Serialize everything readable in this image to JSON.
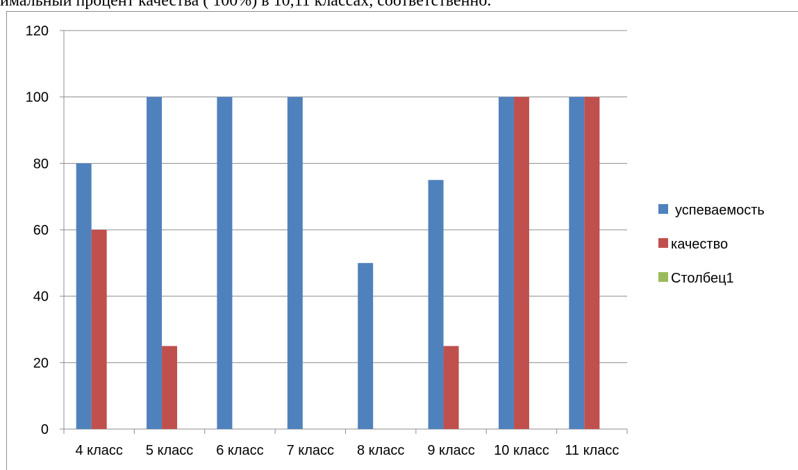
{
  "page": {
    "top_text": "имальный процент качества ( 100%) в 10,11 классах, соответственно."
  },
  "chart_data": {
    "type": "bar",
    "title": "",
    "xlabel": "",
    "ylabel": "",
    "ylim": [
      0,
      120
    ],
    "yticks": [
      0,
      20,
      40,
      60,
      80,
      100,
      120
    ],
    "categories": [
      "4 класс",
      "5 класс",
      "6 класс",
      "7 класс",
      "8 класс",
      "9 класс",
      "10 класс",
      "11 класс"
    ],
    "series": [
      {
        "name": "успеваемость",
        "color": "#4f81bd",
        "values": [
          80,
          100,
          100,
          100,
          50,
          75,
          100,
          100
        ]
      },
      {
        "name": "качество",
        "color": "#c0504d",
        "values": [
          60,
          25,
          0,
          0,
          0,
          25,
          100,
          100
        ]
      },
      {
        "name": "Столбец1",
        "color": "#9bbb59",
        "values": [
          0,
          0,
          0,
          0,
          0,
          0,
          0,
          0
        ]
      }
    ],
    "grid": true,
    "legend_position": "right"
  }
}
